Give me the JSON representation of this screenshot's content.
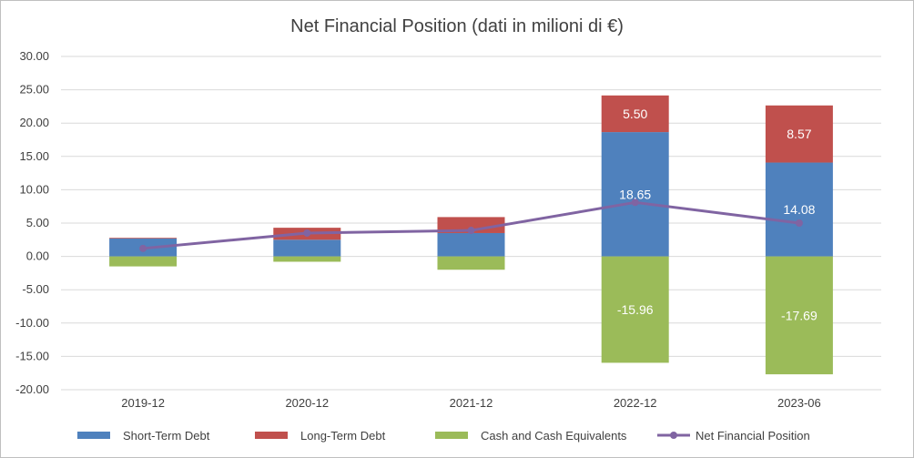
{
  "chart_data": {
    "type": "bar",
    "title": "Net Financial Position (dati in milioni di €)",
    "xlabel": "",
    "ylabel": "",
    "categories": [
      "2019-12",
      "2020-12",
      "2021-12",
      "2022-12",
      "2023-06"
    ],
    "ylim": [
      -20,
      30
    ],
    "yticks": [
      "30.00",
      "25.00",
      "20.00",
      "15.00",
      "10.00",
      "5.00",
      "0.00",
      "-5.00",
      "-10.00",
      "-15.00",
      "-20.00"
    ],
    "grid": true,
    "legend_position": "bottom",
    "stacked": true,
    "series": [
      {
        "name": "Short-Term Debt",
        "type": "bar",
        "color": "#4f81bd",
        "values": [
          2.7,
          2.5,
          3.5,
          18.65,
          14.08
        ],
        "labels": [
          "",
          "",
          "",
          "18.65",
          "14.08"
        ]
      },
      {
        "name": "Long-Term Debt",
        "type": "bar",
        "color": "#c0504d",
        "values": [
          0.1,
          1.8,
          2.4,
          5.5,
          8.57
        ],
        "labels": [
          "",
          "",
          "",
          "5.50",
          "8.57"
        ]
      },
      {
        "name": "Cash and Cash Equivalents",
        "type": "bar",
        "color": "#9bbb59",
        "values": [
          -1.5,
          -0.8,
          -2.0,
          -15.96,
          -17.69
        ],
        "labels": [
          "",
          "",
          "",
          "-15.96",
          "-17.69"
        ]
      },
      {
        "name": "Net Financial Position",
        "type": "line",
        "color": "#8064a2",
        "values": [
          1.2,
          3.5,
          3.9,
          8.1,
          5.0
        ]
      }
    ]
  }
}
